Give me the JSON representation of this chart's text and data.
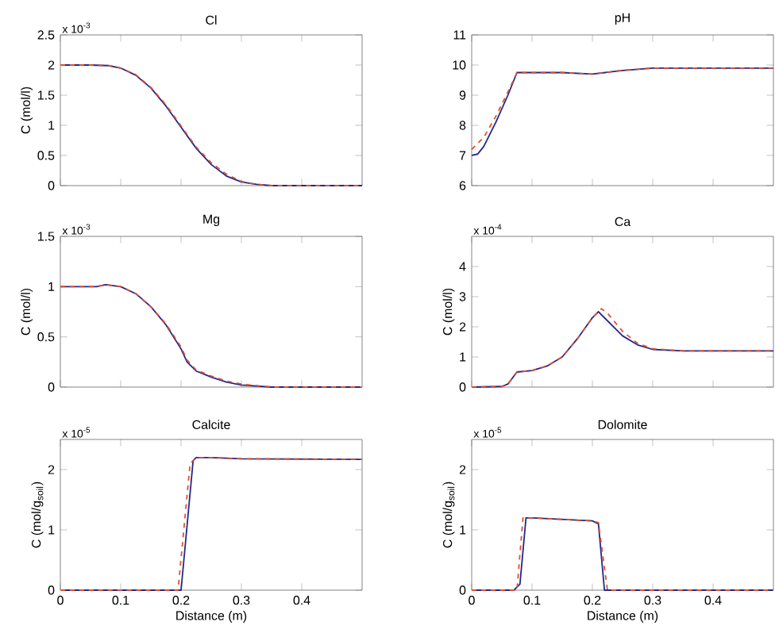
{
  "chart_data": [
    {
      "type": "line",
      "title": "Cl",
      "ylabel": "C (mol/l)",
      "annotations": [
        "x 10$^{-3}$"
      ],
      "xlim": [
        0,
        0.5
      ],
      "ylim": [
        0,
        2.5
      ],
      "xticks": [
        0,
        0.1,
        0.2,
        0.3,
        0.4
      ],
      "yticks": [
        0,
        0.5,
        1,
        1.5,
        2,
        2.5
      ],
      "tick_labels": "y",
      "series": [
        {
          "color": "#e0502a",
          "line_style": "dashed",
          "x": [
            0,
            0.05,
            0.08,
            0.1,
            0.125,
            0.15,
            0.175,
            0.2,
            0.225,
            0.25,
            0.275,
            0.3,
            0.325,
            0.35,
            0.4,
            0.5
          ],
          "values": [
            2,
            2,
            1.99,
            1.95,
            1.84,
            1.63,
            1.34,
            0.99,
            0.64,
            0.38,
            0.19,
            0.07,
            0.02,
            0,
            0,
            0
          ]
        },
        {
          "color": "#22288c",
          "line_style": "solid",
          "x": [
            0,
            0.05,
            0.08,
            0.1,
            0.125,
            0.15,
            0.175,
            0.2,
            0.225,
            0.25,
            0.275,
            0.3,
            0.325,
            0.35,
            0.4,
            0.5
          ],
          "values": [
            2,
            2,
            1.99,
            1.95,
            1.83,
            1.62,
            1.32,
            0.97,
            0.62,
            0.35,
            0.16,
            0.06,
            0.02,
            0,
            0,
            0
          ]
        }
      ]
    },
    {
      "type": "line",
      "title": "pH",
      "xlim": [
        0,
        0.5
      ],
      "ylim": [
        6,
        11
      ],
      "xticks": [
        0,
        0.1,
        0.2,
        0.3,
        0.4
      ],
      "yticks": [
        6,
        7,
        8,
        9,
        10,
        11
      ],
      "tick_labels": "y",
      "series": [
        {
          "color": "#e0502a",
          "line_style": "dashed",
          "x": [
            0,
            0.02,
            0.04,
            0.06,
            0.075,
            0.1,
            0.15,
            0.2,
            0.25,
            0.3,
            0.5
          ],
          "values": [
            7.2,
            7.6,
            8.3,
            9.1,
            9.75,
            9.75,
            9.75,
            9.7,
            9.82,
            9.9,
            9.9
          ]
        },
        {
          "color": "#22288c",
          "line_style": "solid",
          "x": [
            0,
            0.01,
            0.02,
            0.04,
            0.06,
            0.075,
            0.1,
            0.15,
            0.2,
            0.25,
            0.3,
            0.5
          ],
          "values": [
            7.0,
            7.05,
            7.3,
            8.1,
            9.0,
            9.75,
            9.75,
            9.75,
            9.7,
            9.82,
            9.9,
            9.9
          ]
        }
      ]
    },
    {
      "type": "line",
      "title": "Mg",
      "ylabel": "C (mol/l)",
      "annotations": [
        "x 10$^{-3}$"
      ],
      "xlim": [
        0,
        0.5
      ],
      "ylim": [
        0,
        1.5
      ],
      "xticks": [
        0,
        0.1,
        0.2,
        0.3,
        0.4
      ],
      "yticks": [
        0,
        0.5,
        1,
        1.5
      ],
      "tick_labels": "y",
      "series": [
        {
          "color": "#e0502a",
          "line_style": "dashed",
          "x": [
            0,
            0.06,
            0.075,
            0.1,
            0.125,
            0.15,
            0.175,
            0.2,
            0.21,
            0.225,
            0.25,
            0.275,
            0.3,
            0.35,
            0.5
          ],
          "values": [
            1,
            1,
            1.02,
            1.0,
            0.93,
            0.8,
            0.63,
            0.4,
            0.27,
            0.17,
            0.11,
            0.06,
            0.03,
            0,
            0
          ]
        },
        {
          "color": "#22288c",
          "line_style": "solid",
          "x": [
            0,
            0.06,
            0.075,
            0.1,
            0.125,
            0.15,
            0.175,
            0.2,
            0.21,
            0.225,
            0.25,
            0.275,
            0.3,
            0.35,
            0.5
          ],
          "values": [
            1,
            1,
            1.02,
            1.0,
            0.93,
            0.8,
            0.62,
            0.38,
            0.25,
            0.16,
            0.1,
            0.05,
            0.02,
            0,
            0
          ]
        }
      ]
    },
    {
      "type": "line",
      "title": "Ca",
      "ylabel": "C (mol/l)",
      "annotations": [
        "x 10$^{-4}$"
      ],
      "xlim": [
        0,
        0.5
      ],
      "ylim": [
        0,
        5
      ],
      "xticks": [
        0,
        0.1,
        0.2,
        0.3,
        0.4
      ],
      "yticks": [
        0,
        1,
        2,
        3,
        4
      ],
      "tick_labels": "y",
      "series": [
        {
          "color": "#e0502a",
          "line_style": "dashed",
          "x": [
            0,
            0.05,
            0.06,
            0.075,
            0.1,
            0.125,
            0.15,
            0.175,
            0.2,
            0.215,
            0.225,
            0.25,
            0.275,
            0.3,
            0.35,
            0.5
          ],
          "values": [
            0,
            0.02,
            0.1,
            0.5,
            0.55,
            0.7,
            1.0,
            1.6,
            2.3,
            2.6,
            2.45,
            1.85,
            1.45,
            1.27,
            1.2,
            1.2
          ]
        },
        {
          "color": "#22288c",
          "line_style": "solid",
          "x": [
            0,
            0.05,
            0.06,
            0.075,
            0.1,
            0.125,
            0.15,
            0.175,
            0.2,
            0.21,
            0.225,
            0.25,
            0.275,
            0.3,
            0.35,
            0.5
          ],
          "values": [
            0,
            0.02,
            0.1,
            0.5,
            0.55,
            0.7,
            1.0,
            1.6,
            2.3,
            2.5,
            2.2,
            1.7,
            1.4,
            1.25,
            1.2,
            1.2
          ]
        }
      ]
    },
    {
      "type": "line",
      "title": "Calcite",
      "xlabel": "Distance (m)",
      "ylabel": "C (mol/g$_{soil}$)",
      "annotations": [
        "x 10$^{-5}$"
      ],
      "xlim": [
        0,
        0.5
      ],
      "ylim": [
        0,
        2.5
      ],
      "xticks": [
        0,
        0.1,
        0.2,
        0.3,
        0.4
      ],
      "yticks": [
        0,
        1,
        2
      ],
      "series": [
        {
          "color": "#e0502a",
          "line_style": "dashed",
          "x": [
            0,
            0.195,
            0.215,
            0.225,
            0.25,
            0.3,
            0.5
          ],
          "values": [
            0,
            0,
            2.1,
            2.2,
            2.2,
            2.18,
            2.17
          ]
        },
        {
          "color": "#22288c",
          "line_style": "solid",
          "x": [
            0,
            0.2,
            0.22,
            0.225,
            0.25,
            0.3,
            0.5
          ],
          "values": [
            0,
            0,
            2.15,
            2.2,
            2.2,
            2.18,
            2.17
          ]
        }
      ]
    },
    {
      "type": "line",
      "title": "Dolomite",
      "xlabel": "Distance (m)",
      "ylabel": "C (mol/g$_{soil}$)",
      "annotations": [
        "x 10$^{-5}$"
      ],
      "xlim": [
        0,
        0.5
      ],
      "ylim": [
        0,
        2.5
      ],
      "xticks": [
        0,
        0.1,
        0.2,
        0.3,
        0.4
      ],
      "yticks": [
        0,
        1,
        2
      ],
      "series": [
        {
          "color": "#e0502a",
          "line_style": "dashed",
          "x": [
            0,
            0.075,
            0.085,
            0.1,
            0.2,
            0.21,
            0.225,
            0.5
          ],
          "values": [
            0,
            0,
            1.2,
            1.2,
            1.15,
            1.12,
            0,
            0
          ]
        },
        {
          "color": "#22288c",
          "line_style": "solid",
          "x": [
            0,
            0.07,
            0.08,
            0.09,
            0.1,
            0.2,
            0.21,
            0.22,
            0.5
          ],
          "values": [
            0,
            0,
            0.1,
            1.2,
            1.2,
            1.15,
            1.1,
            0,
            0
          ]
        }
      ]
    }
  ]
}
